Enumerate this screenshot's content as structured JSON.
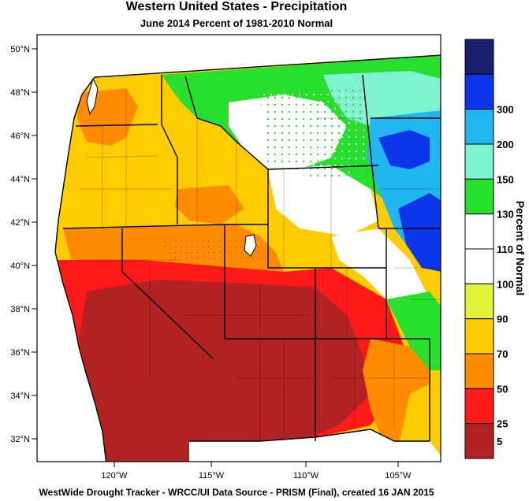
{
  "title": "Western United States - Precipitation",
  "subtitle": "June 2014  Percent of 1981-2010 Normal",
  "footer": "WestWide Drought Tracker - WRCC/UI  Data Source - PRISM (Final), created 16 JAN 2015",
  "legend": {
    "title": "Percent of Normal",
    "bins": [
      {
        "label": "",
        "color": "#1a1f6b"
      },
      {
        "label": "300",
        "color": "#0b35e8"
      },
      {
        "label": "200",
        "color": "#22b6f0"
      },
      {
        "label": "150",
        "color": "#7ff3cf"
      },
      {
        "label": "130",
        "color": "#27e02e"
      },
      {
        "label": "110",
        "color": "#ffffff"
      },
      {
        "label": "100",
        "color": "#ffffff"
      },
      {
        "label": "90",
        "color": "#e2f43a"
      },
      {
        "label": "70",
        "color": "#ffcc00"
      },
      {
        "label": "50",
        "color": "#ff8c00"
      },
      {
        "label": "25",
        "color": "#ff1a1a"
      },
      {
        "label": "5",
        "color": "#b22222"
      }
    ]
  },
  "axes": {
    "lat_labels": [
      "50°N",
      "48°N",
      "46°N",
      "44°N",
      "42°N",
      "40°N",
      "38°N",
      "36°N",
      "34°N",
      "32°N"
    ],
    "lon_labels": [
      "120°W",
      "115°W",
      "110°W",
      "105°W"
    ]
  },
  "colors": {
    "very_dry": "#b22222",
    "dry": "#ff1a1a",
    "below": "#ff8c00",
    "moderate": "#ffcc00",
    "near": "#e2f43a",
    "normal": "#ffffff",
    "wet": "#27e02e",
    "wetter": "#7ff3cf",
    "very_wet": "#22b6f0",
    "extreme": "#0b35e8"
  }
}
